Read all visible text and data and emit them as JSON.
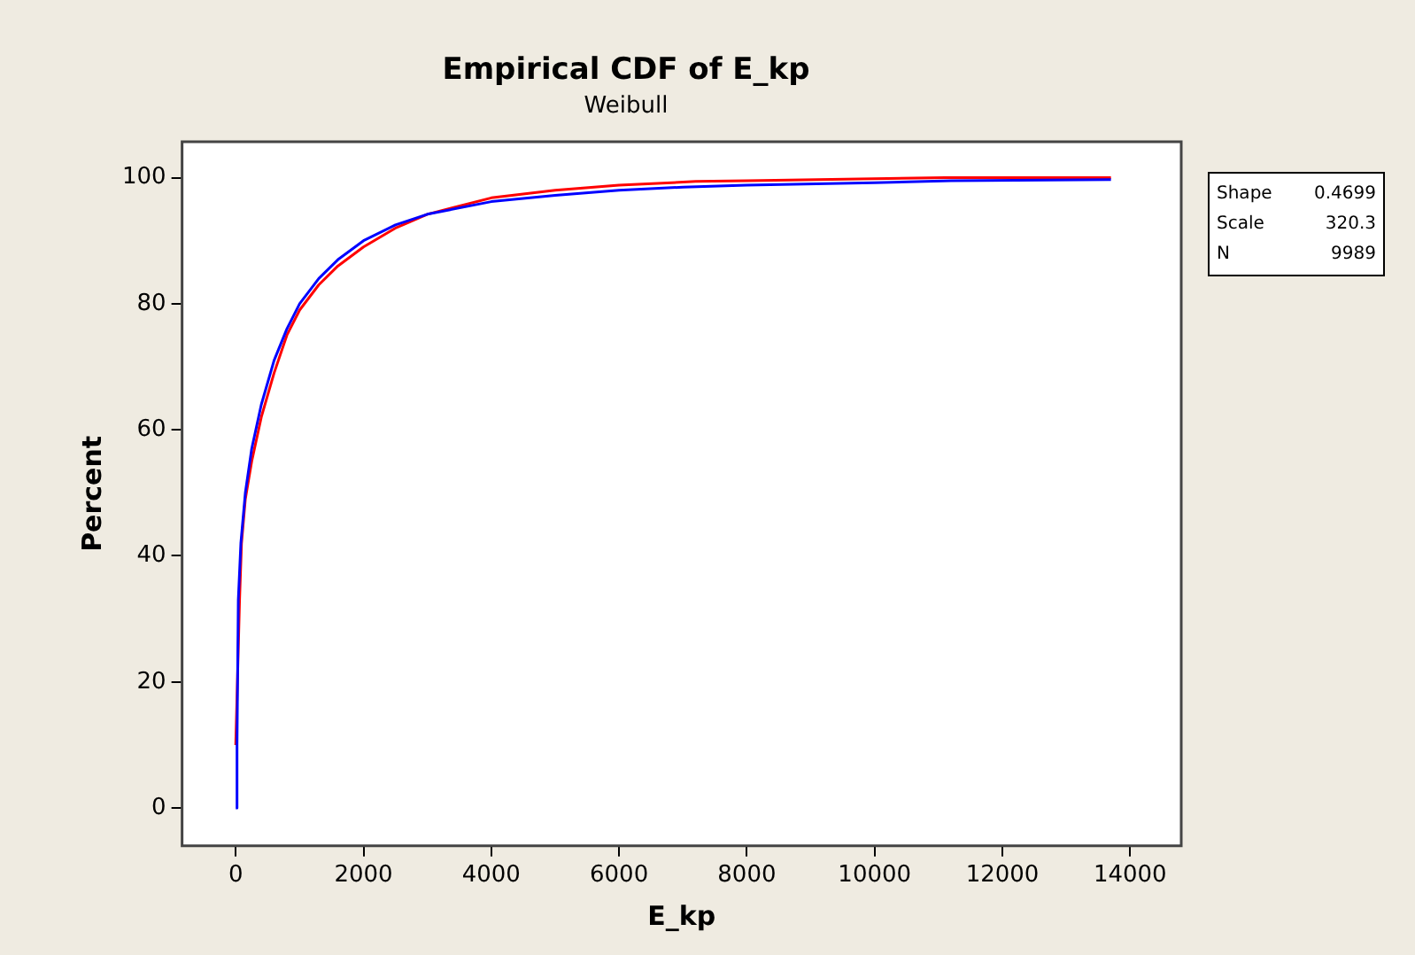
{
  "chart_data": {
    "type": "line",
    "title": "Empirical CDF of E_kp",
    "subtitle": "Weibull",
    "xlabel": "E_kp",
    "ylabel": "Percent",
    "xlim": [
      -840,
      14800
    ],
    "xticks": [
      0,
      2000,
      4000,
      6000,
      8000,
      10000,
      12000,
      14000
    ],
    "ylim": [
      -6,
      105.7
    ],
    "yticks": [
      0,
      20,
      40,
      60,
      80,
      100
    ],
    "grid": false,
    "legend": false,
    "marker": "none",
    "line_style": "solid",
    "series": [
      {
        "color": "#ff0000",
        "x": [
          0,
          60,
          90,
          150,
          250,
          400,
          600,
          800,
          1000,
          1300,
          1600,
          2000,
          2500,
          3000,
          4000,
          5000,
          6000,
          7200,
          8000,
          11100,
          13700
        ],
        "values": [
          10,
          33,
          42,
          49,
          55,
          62,
          69,
          75,
          79,
          83,
          86,
          89,
          92,
          94.2,
          96.8,
          98,
          98.8,
          99.4,
          99.5,
          100,
          100
        ]
      },
      {
        "color": "#0000ff",
        "x": [
          0,
          20,
          40,
          80,
          150,
          250,
          400,
          600,
          800,
          1000,
          1300,
          1600,
          2000,
          2500,
          3000,
          4000,
          5000,
          6000,
          7000,
          8000,
          10000,
          11200,
          13700
        ],
        "values": [
          0,
          10,
          33,
          42,
          50,
          57,
          64,
          71,
          76,
          80,
          84,
          87,
          90,
          92.5,
          94.2,
          96.2,
          97.2,
          98,
          98.5,
          98.8,
          99.2,
          99.5,
          99.7
        ]
      }
    ],
    "annotations": [
      "Shape 0.4699",
      "Scale 320.3",
      "N 9989"
    ]
  }
}
